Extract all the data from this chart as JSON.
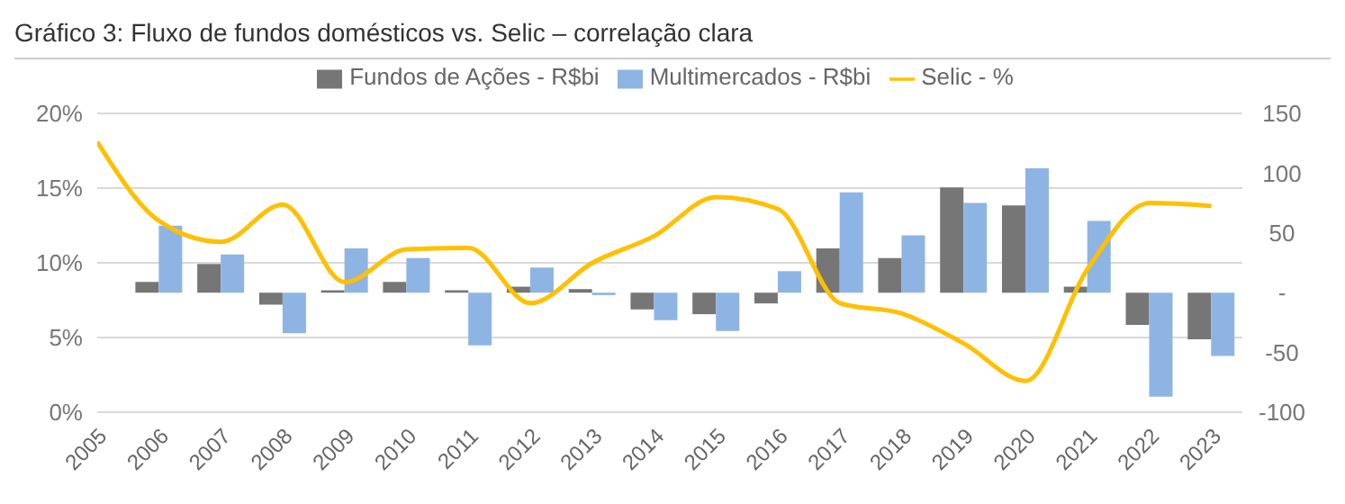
{
  "chart_data": {
    "type": "bar",
    "title": "Gráfico 3: Fluxo de fundos domésticos vs. Selic – correlação clara",
    "categories": [
      "2005",
      "2006",
      "2007",
      "2008",
      "2009",
      "2010",
      "2011",
      "2012",
      "2013",
      "2014",
      "2015",
      "2016",
      "2017",
      "2018",
      "2019",
      "2020",
      "2021",
      "2022",
      "2023"
    ],
    "series": [
      {
        "name": "Fundos de Ações - R$bi",
        "axis": "y2",
        "color": "#767676",
        "values": [
          null,
          9,
          24,
          -10,
          2,
          9,
          2,
          5,
          3,
          -14,
          -18,
          -9,
          37,
          29,
          88,
          73,
          5,
          -27,
          -39
        ]
      },
      {
        "name": "Multimercados - R$bi",
        "axis": "y2",
        "color": "#8eb4e3",
        "values": [
          null,
          56,
          32,
          -34,
          37,
          29,
          -44,
          21,
          -2,
          -23,
          -32,
          18,
          84,
          48,
          75,
          104,
          60,
          -87,
          -53
        ]
      },
      {
        "name": "Selic - %",
        "type": "line",
        "color": "#ffc000",
        "values": [
          18.1,
          12.8,
          11.4,
          13.9,
          8.7,
          10.9,
          11,
          7.3,
          10,
          11.8,
          14.4,
          13.6,
          7.3,
          6.6,
          4.6,
          2.1,
          9.6,
          14,
          13.8
        ]
      }
    ],
    "ylim": [
      0,
      20
    ],
    "yticks": [
      {
        "value": 0,
        "label": "0%"
      },
      {
        "value": 5,
        "label": "5%"
      },
      {
        "value": 10,
        "label": "10%"
      },
      {
        "value": 15,
        "label": "15%"
      },
      {
        "value": 20,
        "label": "20%"
      }
    ],
    "y2lim": [
      -100,
      150
    ],
    "y2ticks": [
      -100,
      -50,
      {
        "value": 0,
        "label": "-"
      },
      50,
      100,
      150
    ],
    "grid": "y",
    "legend": "top"
  }
}
